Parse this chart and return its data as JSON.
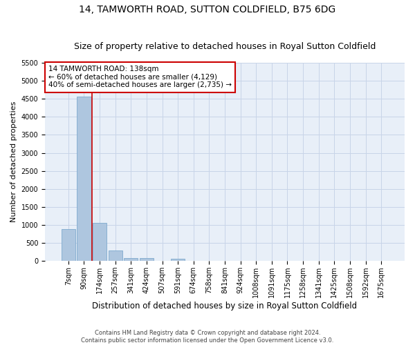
{
  "title": "14, TAMWORTH ROAD, SUTTON COLDFIELD, B75 6DG",
  "subtitle": "Size of property relative to detached houses in Royal Sutton Coldfield",
  "xlabel": "Distribution of detached houses by size in Royal Sutton Coldfield",
  "ylabel": "Number of detached properties",
  "footer_line1": "Contains HM Land Registry data © Crown copyright and database right 2024.",
  "footer_line2": "Contains public sector information licensed under the Open Government Licence v3.0.",
  "categories": [
    "7sqm",
    "90sqm",
    "174sqm",
    "257sqm",
    "341sqm",
    "424sqm",
    "507sqm",
    "591sqm",
    "674sqm",
    "758sqm",
    "841sqm",
    "924sqm",
    "1008sqm",
    "1091sqm",
    "1175sqm",
    "1258sqm",
    "1341sqm",
    "1425sqm",
    "1508sqm",
    "1592sqm",
    "1675sqm"
  ],
  "values": [
    880,
    4560,
    1060,
    290,
    90,
    80,
    0,
    60,
    0,
    0,
    0,
    0,
    0,
    0,
    0,
    0,
    0,
    0,
    0,
    0,
    0
  ],
  "bar_color": "#aec6df",
  "bar_edge_color": "#6fa0c8",
  "line_color": "#cc0000",
  "annotation_text": "14 TAMWORTH ROAD: 138sqm\n← 60% of detached houses are smaller (4,129)\n40% of semi-detached houses are larger (2,735) →",
  "annotation_box_color": "#ffffff",
  "annotation_box_edge_color": "#cc0000",
  "ylim": [
    0,
    5500
  ],
  "yticks": [
    0,
    500,
    1000,
    1500,
    2000,
    2500,
    3000,
    3500,
    4000,
    4500,
    5000,
    5500
  ],
  "grid_color": "#c8d4e8",
  "background_color": "#e8eff8",
  "title_fontsize": 10,
  "subtitle_fontsize": 9,
  "xlabel_fontsize": 8.5,
  "ylabel_fontsize": 8,
  "tick_fontsize": 7,
  "footer_fontsize": 6,
  "annotation_fontsize": 7.5
}
